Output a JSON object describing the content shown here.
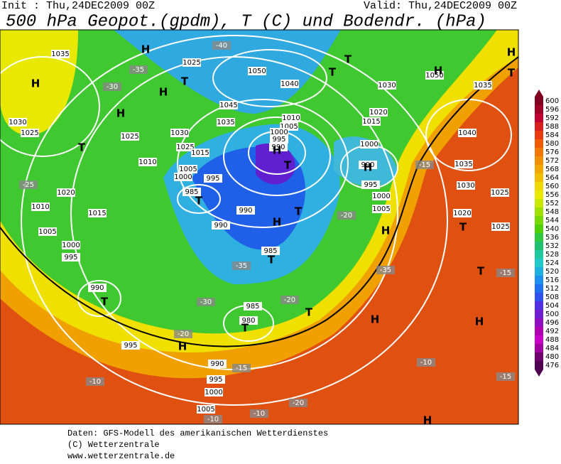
{
  "header": {
    "init": "Init : Thu,24DEC2009 00Z",
    "valid": "Valid: Thu,24DEC2009 00Z",
    "title": "500 hPa Geopot.(gpdm), T (C) und Bodendr. (hPa)"
  },
  "scale": {
    "levels": [
      "600",
      "596",
      "592",
      "588",
      "584",
      "580",
      "576",
      "572",
      "568",
      "564",
      "560",
      "556",
      "552",
      "548",
      "544",
      "540",
      "536",
      "532",
      "528",
      "524",
      "520",
      "516",
      "512",
      "508",
      "504",
      "500",
      "496",
      "492",
      "488",
      "484",
      "480",
      "476"
    ],
    "colors": [
      "#800020",
      "#a00028",
      "#c00030",
      "#d82020",
      "#e83c10",
      "#f05a00",
      "#f07800",
      "#f09000",
      "#f0a800",
      "#f0c000",
      "#f0d800",
      "#e8e800",
      "#c8e800",
      "#a0e000",
      "#78d800",
      "#50d000",
      "#30c840",
      "#20c070",
      "#20c8a0",
      "#20c8c8",
      "#20b0e0",
      "#2090f0",
      "#2070f0",
      "#3050f0",
      "#5030e0",
      "#7020d0",
      "#9010c0",
      "#b000b0",
      "#c800c8",
      "#a000a0",
      "#700070",
      "#500050"
    ]
  },
  "map": {
    "labels": [
      "1035",
      "1025",
      "1050",
      "1040",
      "1030",
      "1050",
      "1035",
      "1045",
      "1035",
      "1010",
      "1005",
      "1000",
      "995",
      "990",
      "1020",
      "1015",
      "1000",
      "990",
      "995",
      "1000",
      "1005",
      "1030",
      "1025",
      "1025",
      "1030",
      "1025",
      "1015",
      "1010",
      "1005",
      "1000",
      "995",
      "985",
      "990",
      "990",
      "1020",
      "1010",
      "1015",
      "1005",
      "1000",
      "995",
      "990",
      "985",
      "985",
      "980",
      "995",
      "990",
      "995",
      "1000",
      "1005",
      "1035",
      "1030",
      "1025",
      "1020",
      "1025",
      "1040",
      "-40",
      "-35",
      "-30",
      "-25",
      "-35",
      "-30",
      "-20",
      "-15",
      "-10",
      "-10",
      "-10",
      "-20",
      "-20",
      "-35",
      "-20",
      "-15",
      "-15",
      "-10",
      "-15",
      "H",
      "H",
      "H",
      "H",
      "T",
      "T",
      "H",
      "T",
      "H",
      "T",
      "T",
      "H",
      "H",
      "H",
      "T",
      "T",
      "H",
      "T",
      "T",
      "H",
      "T",
      "T",
      "H",
      "T",
      "T",
      "H",
      "T",
      "H",
      "H"
    ]
  },
  "footer": [
    "Daten: GFS-Modell des amerikanischen Wetterdienstes",
    "(C) Wetterzentrale",
    "www.wetterzentrale.de"
  ]
}
